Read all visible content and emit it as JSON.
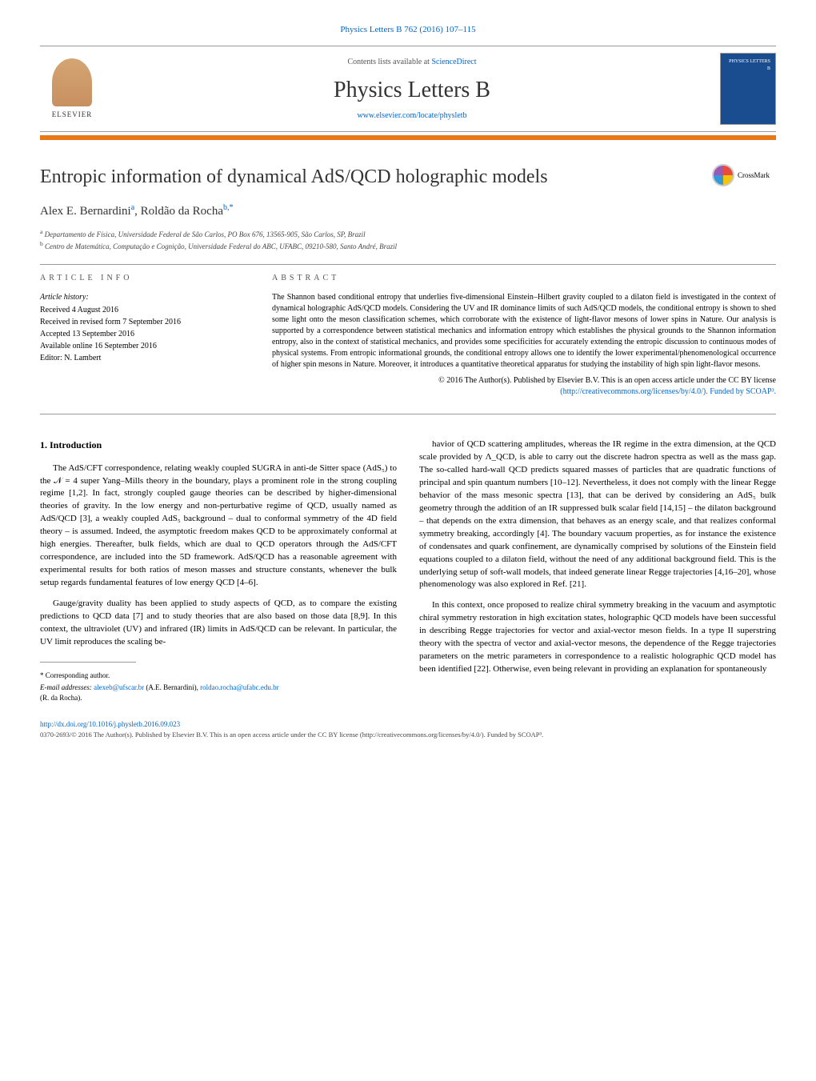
{
  "journal_ref": "Physics Letters B 762 (2016) 107–115",
  "header": {
    "contents_prefix": "Contents lists available at ",
    "contents_link": "ScienceDirect",
    "journal_title": "Physics Letters B",
    "journal_url": "www.elsevier.com/locate/physletb",
    "publisher": "ELSEVIER",
    "cover_text": "PHYSICS LETTERS B"
  },
  "colors": {
    "accent_bar": "#e67817",
    "link": "#0066cc",
    "cover_bg": "#1a4d8f",
    "text": "#000000",
    "heading": "#333333"
  },
  "article": {
    "title": "Entropic information of dynamical AdS/QCD holographic models",
    "crossmark_label": "CrossMark",
    "authors_html": "Alex E. Bernardini",
    "author_a_sup": "a",
    "author_b": "Roldão da Rocha",
    "author_b_sup": "b,*",
    "affiliations": {
      "a": "Departamento de Física, Universidade Federal de São Carlos, PO Box 676, 13565-905, São Carlos, SP, Brazil",
      "b": "Centro de Matemática, Computação e Cognição, Universidade Federal do ABC, UFABC, 09210-580, Santo André, Brazil"
    }
  },
  "info": {
    "heading": "ARTICLE INFO",
    "history_label": "Article history:",
    "received": "Received 4 August 2016",
    "revised": "Received in revised form 7 September 2016",
    "accepted": "Accepted 13 September 2016",
    "online": "Available online 16 September 2016",
    "editor": "Editor: N. Lambert"
  },
  "abstract": {
    "heading": "ABSTRACT",
    "text": "The Shannon based conditional entropy that underlies five-dimensional Einstein–Hilbert gravity coupled to a dilaton field is investigated in the context of dynamical holographic AdS/QCD models. Considering the UV and IR dominance limits of such AdS/QCD models, the conditional entropy is shown to shed some light onto the meson classification schemes, which corroborate with the existence of light-flavor mesons of lower spins in Nature. Our analysis is supported by a correspondence between statistical mechanics and information entropy which establishes the physical grounds to the Shannon information entropy, also in the context of statistical mechanics, and provides some specificities for accurately extending the entropic discussion to continuous modes of physical systems. From entropic informational grounds, the conditional entropy allows one to identify the lower experimental/phenomenological occurrence of higher spin mesons in Nature. Moreover, it introduces a quantitative theoretical apparatus for studying the instability of high spin light-flavor mesons.",
    "copyright_line": "© 2016 The Author(s). Published by Elsevier B.V. This is an open access article under the CC BY license",
    "license_url": "(http://creativecommons.org/licenses/by/4.0/). Funded by SCOAP³."
  },
  "body": {
    "section_number": "1.",
    "section_title": "Introduction",
    "col1_p1": "The AdS/CFT correspondence, relating weakly coupled SUGRA in anti-de Sitter space (AdS₅) to the 𝒩 = 4 super Yang–Mills theory in the boundary, plays a prominent role in the strong coupling regime [1,2]. In fact, strongly coupled gauge theories can be described by higher-dimensional theories of gravity. In the low energy and non-perturbative regime of QCD, usually named as AdS/QCD [3], a weakly coupled AdS₅ background – dual to conformal symmetry of the 4D field theory – is assumed. Indeed, the asymptotic freedom makes QCD to be approximately conformal at high energies. Thereafter, bulk fields, which are dual to QCD operators through the AdS/CFT correspondence, are included into the 5D framework. AdS/QCD has a reasonable agreement with experimental results for both ratios of meson masses and structure constants, whenever the bulk setup regards fundamental features of low energy QCD [4–6].",
    "col1_p2": "Gauge/gravity duality has been applied to study aspects of QCD, as to compare the existing predictions to QCD data [7] and to study theories that are also based on those data [8,9]. In this context, the ultraviolet (UV) and infrared (IR) limits in AdS/QCD can be relevant. In particular, the UV limit reproduces the scaling be-",
    "col2_p1": "havior of QCD scattering amplitudes, whereas the IR regime in the extra dimension, at the QCD scale provided by Λ_QCD, is able to carry out the discrete hadron spectra as well as the mass gap. The so-called hard-wall QCD predicts squared masses of particles that are quadratic functions of principal and spin quantum numbers [10–12]. Nevertheless, it does not comply with the linear Regge behavior of the mass mesonic spectra [13], that can be derived by considering an AdS₅ bulk geometry through the addition of an IR suppressed bulk scalar field [14,15] – the dilaton background – that depends on the extra dimension, that behaves as an energy scale, and that realizes conformal symmetry breaking, accordingly [4]. The boundary vacuum properties, as for instance the existence of condensates and quark confinement, are dynamically comprised by solutions of the Einstein field equations coupled to a dilaton field, without the need of any additional background field. This is the underlying setup of soft-wall models, that indeed generate linear Regge trajectories [4,16–20], whose phenomenology was also explored in Ref. [21].",
    "col2_p2": "In this context, once proposed to realize chiral symmetry breaking in the vacuum and asymptotic chiral symmetry restoration in high excitation states, holographic QCD models have been successful in describing Regge trajectories for vector and axial-vector meson fields. In a type II superstring theory with the spectra of vector and axial-vector mesons, the dependence of the Regge trajectories parameters on the metric parameters in correspondence to a realistic holographic QCD model has been identified [22]. Otherwise, even being relevant in providing an explanation for spontaneously"
  },
  "footer": {
    "corresponding_label": "* Corresponding author.",
    "email_label": "E-mail addresses:",
    "email_a": "alexeb@ufscar.br",
    "email_a_name": "(A.E. Bernardini),",
    "email_b": "roldao.rocha@ufabc.edu.br",
    "email_b_name": "(R. da Rocha).",
    "doi": "http://dx.doi.org/10.1016/j.physletb.2016.09.023",
    "copyright": "0370-2693/© 2016 The Author(s). Published by Elsevier B.V. This is an open access article under the CC BY license (http://creativecommons.org/licenses/by/4.0/). Funded by SCOAP³."
  }
}
